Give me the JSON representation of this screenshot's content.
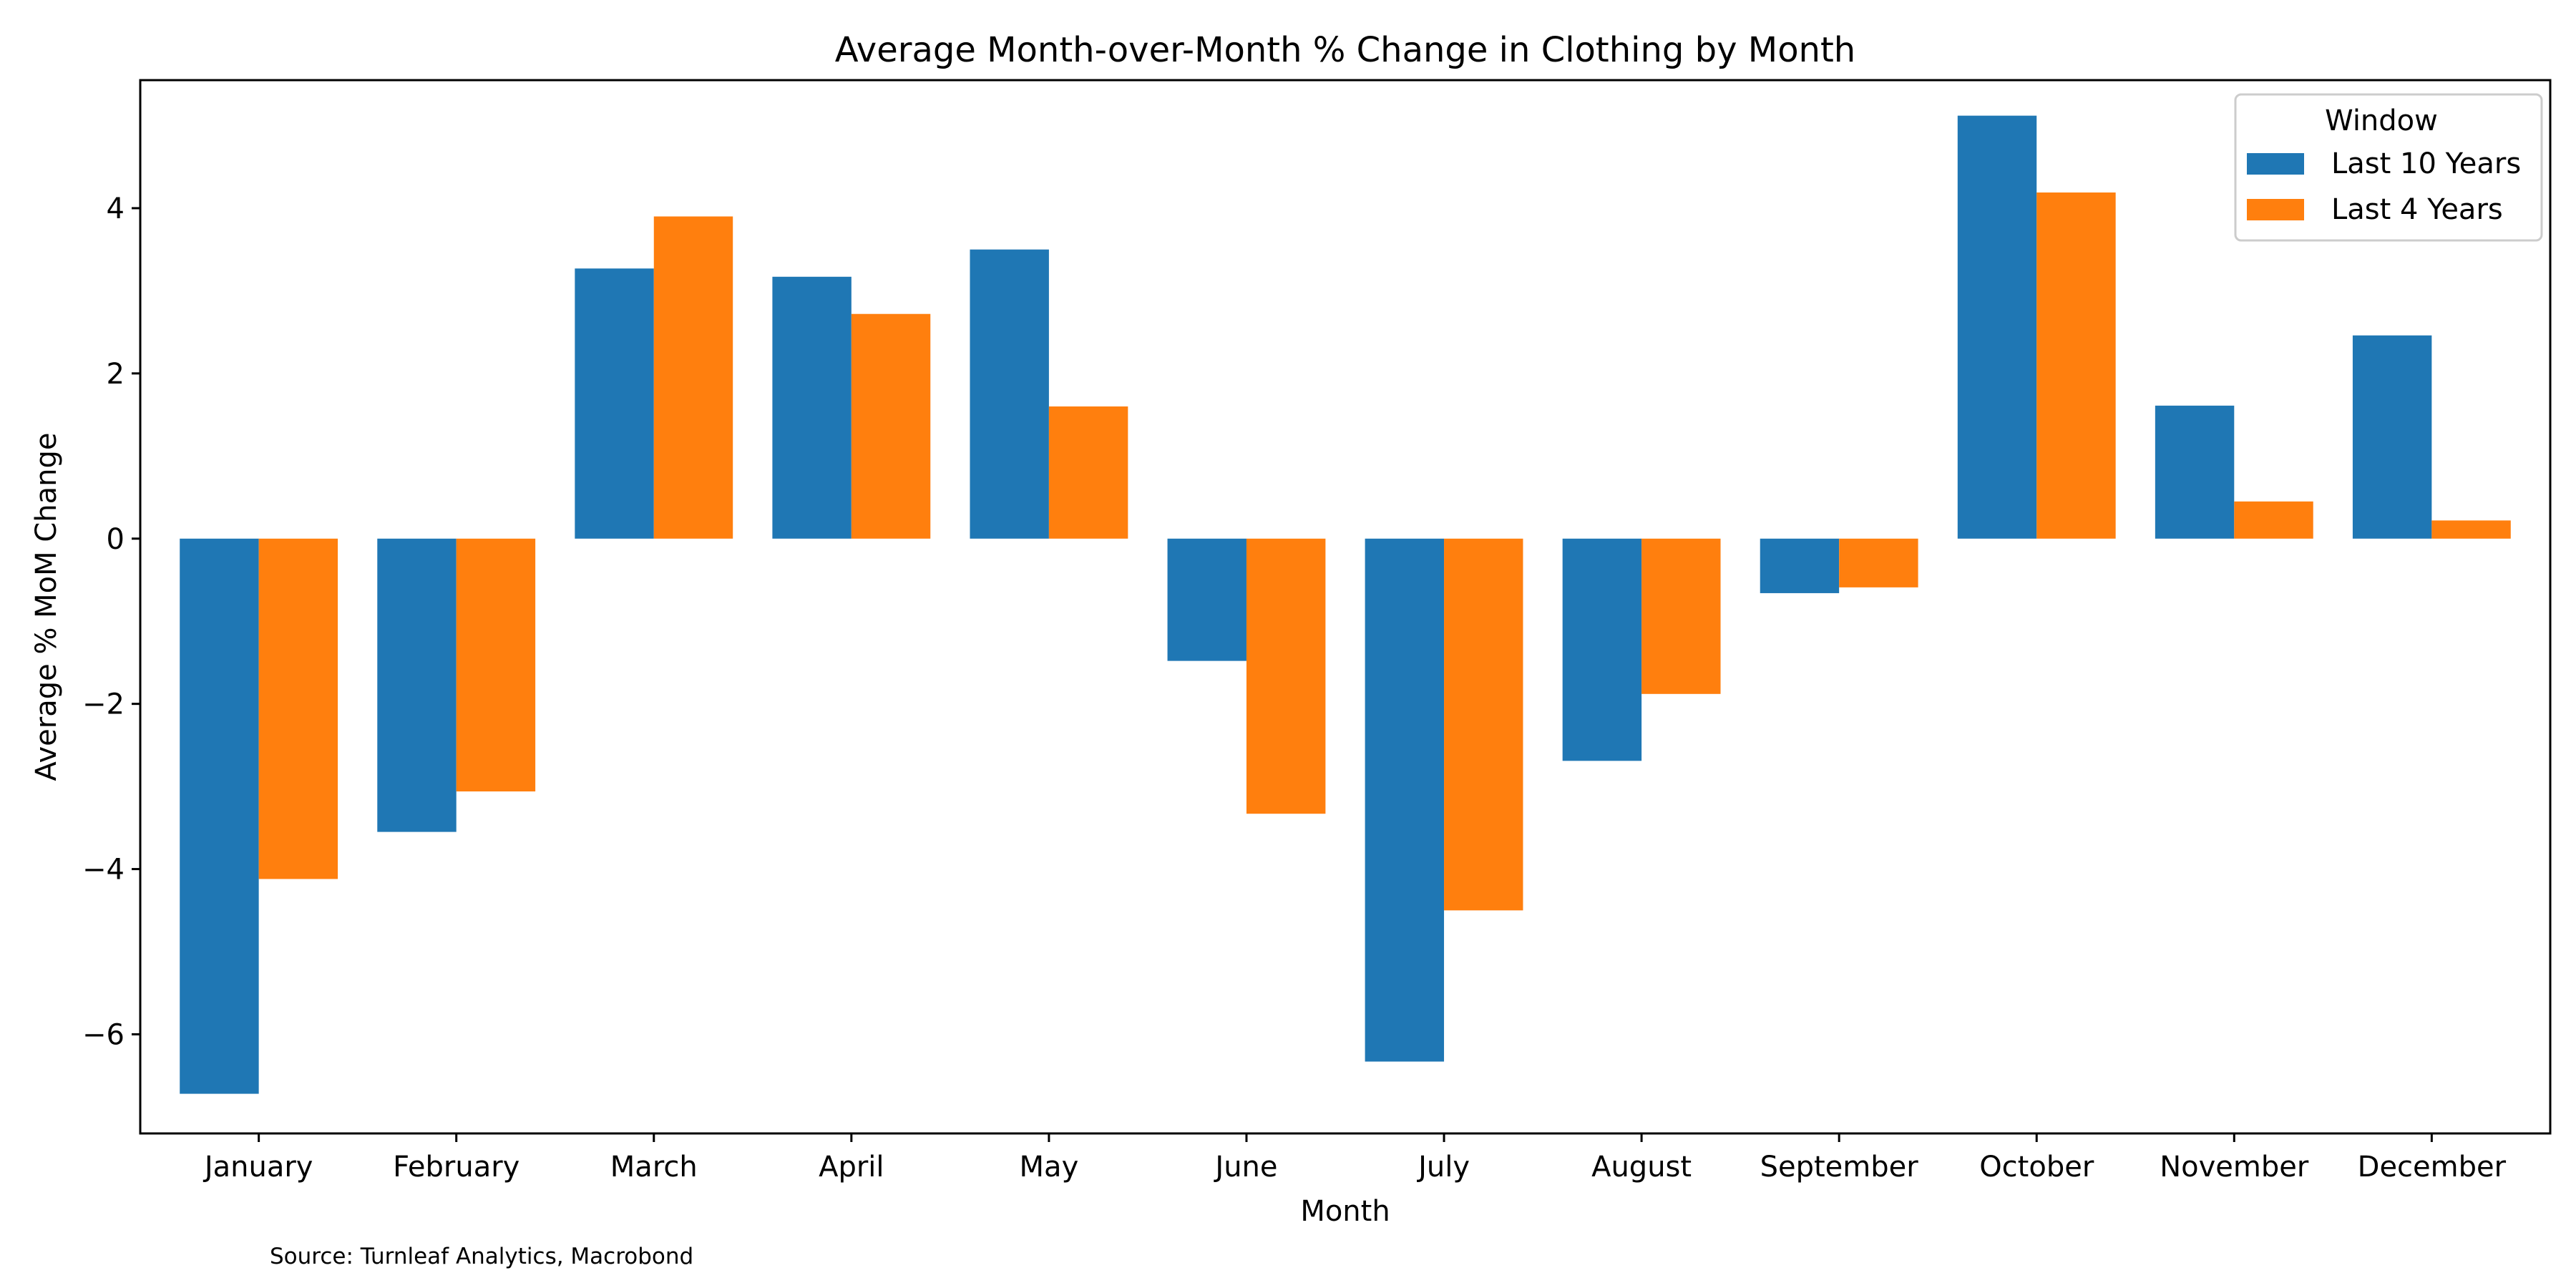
{
  "chart_data": {
    "type": "bar",
    "title": "Average Month-over-Month % Change in Clothing by Month",
    "xlabel": "Month",
    "ylabel": "Average % MoM Change",
    "categories": [
      "January",
      "February",
      "March",
      "April",
      "May",
      "June",
      "July",
      "August",
      "September",
      "October",
      "November",
      "December"
    ],
    "series": [
      {
        "name": "Last 10 Years",
        "color": "#1f77b4",
        "values": [
          -6.72,
          -3.55,
          3.27,
          3.17,
          3.5,
          -1.48,
          -6.33,
          -2.69,
          -0.66,
          5.12,
          1.61,
          2.46
        ]
      },
      {
        "name": "Last 4 Years",
        "color": "#ff7f0e",
        "values": [
          -4.12,
          -3.06,
          3.9,
          2.72,
          1.6,
          -3.33,
          -4.5,
          -1.88,
          -0.59,
          4.19,
          0.45,
          0.22
        ]
      }
    ],
    "ylim": [
      -7.2,
      5.55
    ],
    "yticks": [
      -6,
      -4,
      -2,
      0,
      2,
      4
    ],
    "ytick_labels": [
      "−6",
      "−4",
      "−2",
      "0",
      "2",
      "4"
    ],
    "legend": {
      "title": "Window",
      "position": "top-right"
    },
    "grid": false
  },
  "source": "Source: Turnleaf Analytics, Macrobond"
}
